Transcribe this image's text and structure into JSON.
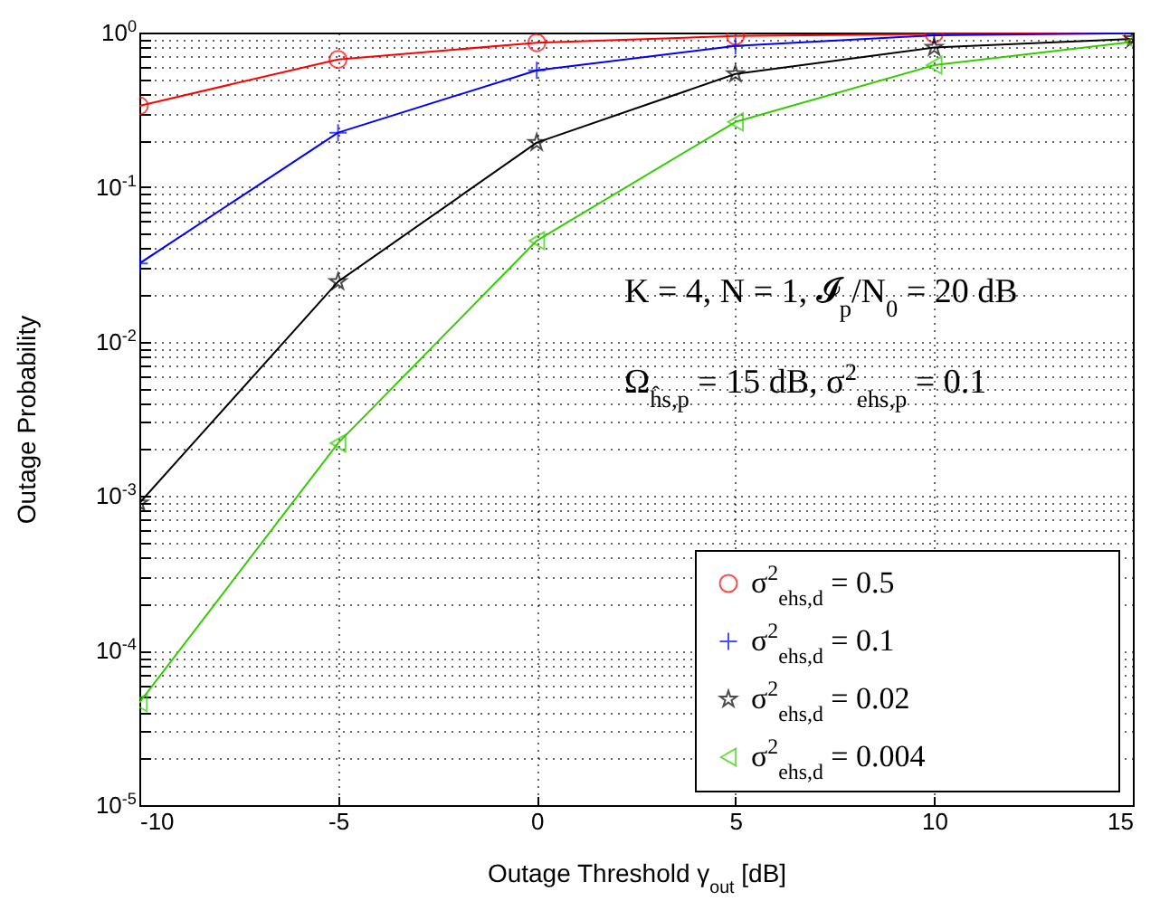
{
  "chart_data": {
    "type": "line",
    "xlabel": "Outage Threshold γ$_{out}$ [dB]",
    "ylabel": "Outage Probability",
    "x": [
      -10,
      -5,
      0,
      5,
      10,
      15
    ],
    "series": [
      {
        "name": "σ$^{2}$$_{ehs,d}$ = 0.5",
        "color": "#ff0000",
        "marker": "circle",
        "values": [
          0.336,
          0.67,
          0.86,
          0.95,
          0.98,
          0.99
        ]
      },
      {
        "name": "σ$^{2}$$_{ehs,d}$ = 0.1",
        "color": "#0000ff",
        "marker": "cross",
        "values": [
          0.032,
          0.225,
          0.57,
          0.82,
          0.96,
          0.99
        ]
      },
      {
        "name": "σ$^{2}$$_{ehs,d}$ = 0.02",
        "color": "#000000",
        "marker": "star",
        "values": [
          0.0009,
          0.0244,
          0.194,
          0.54,
          0.8,
          0.91
        ]
      },
      {
        "name": "σ$^{2}$$_{ehs,d}$ = 0.004",
        "color": "#33cc00",
        "marker": "triangle",
        "values": [
          4.6e-05,
          0.0022,
          0.045,
          0.264,
          0.615,
          0.87
        ]
      }
    ],
    "log": true,
    "grid": true,
    "legend": "bottom right",
    "line_style": "solid",
    "xlim": [
      -10,
      15
    ],
    "xticks": [
      -10,
      -5,
      0,
      5,
      10,
      15
    ],
    "ylim": [
      1e-05,
      1
    ],
    "yticks": [
      {
        "value": 1e-05,
        "label": "10$^{-5}$"
      },
      {
        "value": 2e-05,
        "label": null
      },
      {
        "value": 3e-05,
        "label": null
      },
      {
        "value": 4e-05,
        "label": null
      },
      {
        "value": 5e-05,
        "label": null
      },
      {
        "value": 6e-05,
        "label": null
      },
      {
        "value": 7e-05,
        "label": null
      },
      {
        "value": 8e-05,
        "label": null
      },
      {
        "value": 9e-05,
        "label": null
      },
      {
        "value": 0.0001,
        "label": "10$^{-4}$"
      },
      {
        "value": 0.0002,
        "label": null
      },
      {
        "value": 0.0003,
        "label": null
      },
      {
        "value": 0.0004,
        "label": null
      },
      {
        "value": 0.0005,
        "label": null
      },
      {
        "value": 0.0006,
        "label": null
      },
      {
        "value": 0.0007,
        "label": null
      },
      {
        "value": 0.0008,
        "label": null
      },
      {
        "value": 0.0009,
        "label": null
      },
      {
        "value": 0.001,
        "label": "10$^{-3}$"
      },
      {
        "value": 0.002,
        "label": null
      },
      {
        "value": 0.003,
        "label": null
      },
      {
        "value": 0.004,
        "label": null
      },
      {
        "value": 0.005,
        "label": null
      },
      {
        "value": 0.006,
        "label": null
      },
      {
        "value": 0.007,
        "label": null
      },
      {
        "value": 0.008,
        "label": null
      },
      {
        "value": 0.009,
        "label": null
      },
      {
        "value": 0.01,
        "label": "10$^{-2}$"
      },
      {
        "value": 0.02,
        "label": null
      },
      {
        "value": 0.03,
        "label": null
      },
      {
        "value": 0.04,
        "label": null
      },
      {
        "value": 0.05,
        "label": null
      },
      {
        "value": 0.06,
        "label": null
      },
      {
        "value": 0.07,
        "label": null
      },
      {
        "value": 0.08,
        "label": null
      },
      {
        "value": 0.09,
        "label": null
      },
      {
        "value": 0.1,
        "label": "10$^{-1}$"
      },
      {
        "value": 0.2,
        "label": null
      },
      {
        "value": 0.3,
        "label": null
      },
      {
        "value": 0.4,
        "label": null
      },
      {
        "value": 0.5,
        "label": null
      },
      {
        "value": 0.6,
        "label": null
      },
      {
        "value": 0.7,
        "label": null
      },
      {
        "value": 0.8,
        "label": null
      },
      {
        "value": 0.9,
        "label": null
      },
      {
        "value": 1,
        "label": "10$^{0}$"
      }
    ],
    "annotations": [
      "K = 4, N = 1, 𝓘$_{p}$/N$_{0}$ = 20 dB",
      "Ω$_{ĥs,p}$ = 15 dB, σ$^{2}$$_{ehs,p}$ = 0.1"
    ]
  }
}
